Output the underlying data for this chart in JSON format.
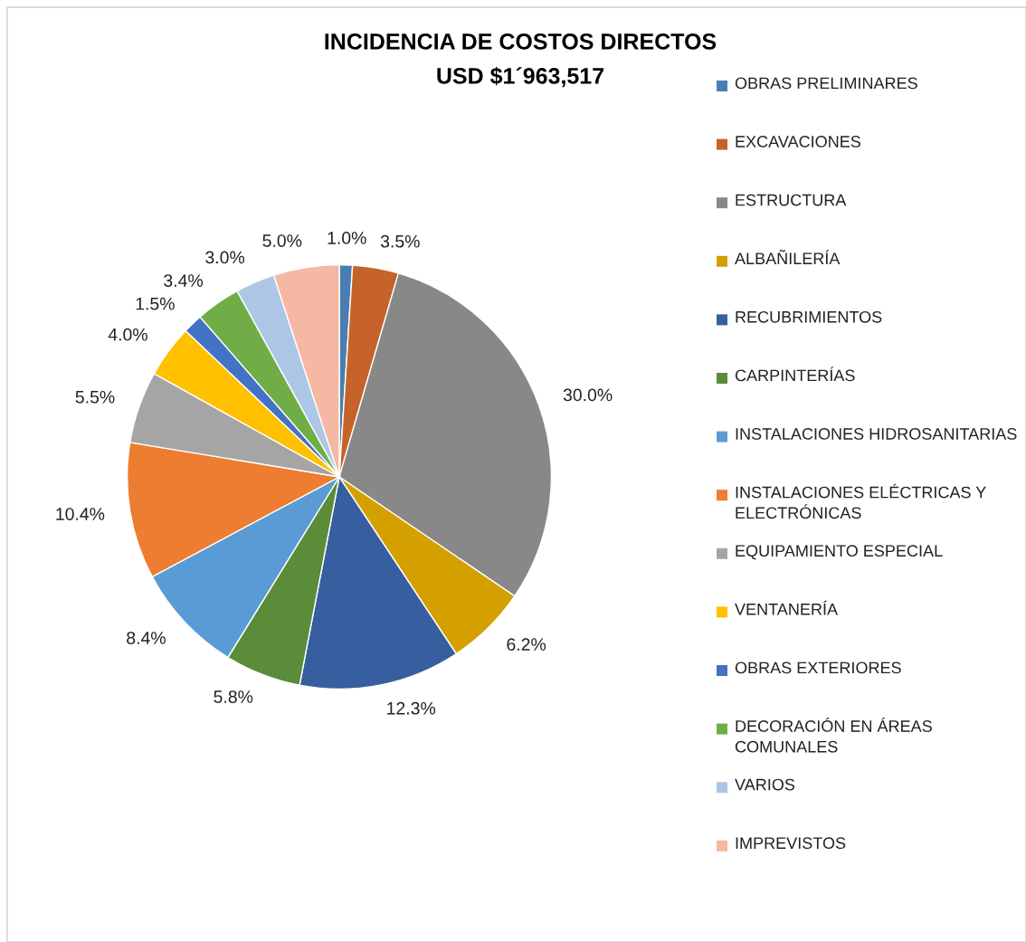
{
  "chart_data": {
    "type": "pie",
    "title": "INCIDENCIA DE COSTOS DIRECTOS",
    "subtitle": "USD $1´963,517",
    "categories": [
      "OBRAS PRELIMINARES",
      "EXCAVACIONES",
      "ESTRUCTURA",
      "ALBAÑILERÍA",
      "RECUBRIMIENTOS",
      "CARPINTERÍAS",
      "INSTALACIONES HIDROSANITARIAS",
      "INSTALACIONES ELÉCTRICAS Y ELECTRÓNICAS",
      "EQUIPAMIENTO ESPECIAL",
      "VENTANERÍA",
      "OBRAS EXTERIORES",
      "DECORACIÓN EN ÁREAS COMUNALES",
      "VARIOS",
      "IMPREVISTOS"
    ],
    "values": [
      1.0,
      3.5,
      30.0,
      6.2,
      12.3,
      5.8,
      8.4,
      10.4,
      5.5,
      4.0,
      1.5,
      3.4,
      3.0,
      5.0
    ],
    "value_labels": [
      "1.0%",
      "3.5%",
      "30.0%",
      "6.2%",
      "12.3%",
      "5.8%",
      "8.4%",
      "10.4%",
      "5.5%",
      "4.0%",
      "1.5%",
      "3.4%",
      "3.0%",
      "5.0%"
    ],
    "colors": [
      "#4a7eb3",
      "#c5632a",
      "#888888",
      "#d4a000",
      "#375e9e",
      "#5a8c3a",
      "#5b9bd5",
      "#ed7d31",
      "#a5a5a5",
      "#ffc000",
      "#4472c4",
      "#70ad47",
      "#adc6e5",
      "#f4b8a3"
    ],
    "legend": "right"
  }
}
